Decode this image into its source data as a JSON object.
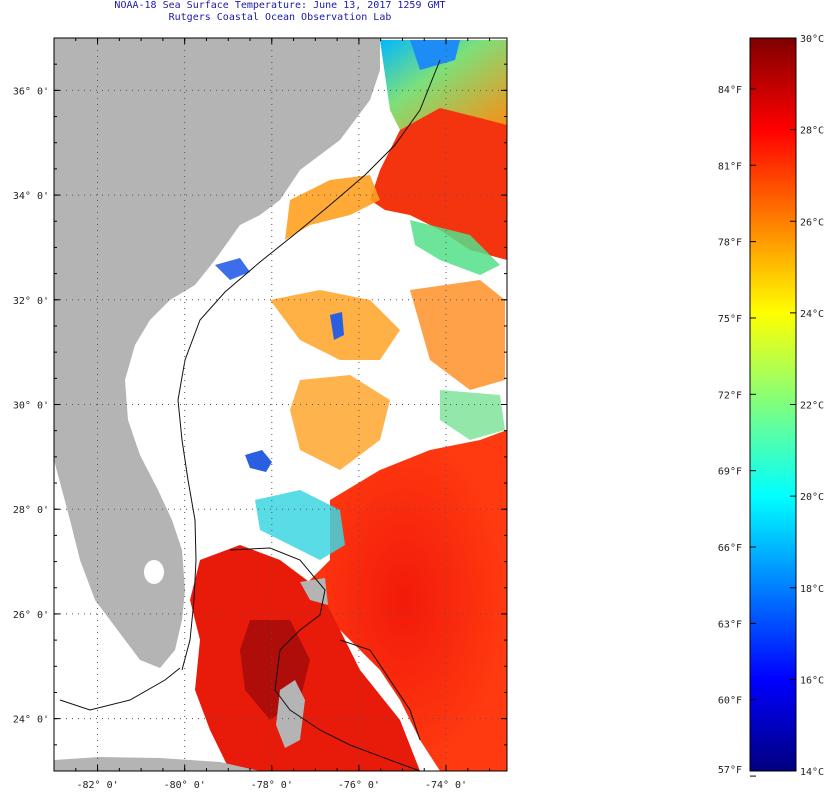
{
  "header": {
    "title": "NOAA-18 Sea Surface Temperature:  June 13, 2017 1259 GMT",
    "subtitle": "Rutgers Coastal Ocean Observation Lab"
  },
  "map": {
    "lat_range": [
      23.0,
      37.0
    ],
    "lon_range": [
      -83.0,
      -72.6
    ],
    "lat_ticks": [
      {
        "value": 36,
        "label": "36° 0'"
      },
      {
        "value": 34,
        "label": "34° 0'"
      },
      {
        "value": 32,
        "label": "32° 0'"
      },
      {
        "value": 30,
        "label": "30° 0'"
      },
      {
        "value": 28,
        "label": "28° 0'"
      },
      {
        "value": 26,
        "label": "26° 0'"
      },
      {
        "value": 24,
        "label": "24° 0'"
      }
    ],
    "lon_ticks": [
      {
        "value": -82,
        "label": "-82° 0'"
      },
      {
        "value": -80,
        "label": "-80° 0'"
      },
      {
        "value": -78,
        "label": "-78° 0'"
      },
      {
        "value": -76,
        "label": "-76° 0'"
      },
      {
        "value": -74,
        "label": "-74° 0'"
      }
    ],
    "grid": true,
    "colors": {
      "land": "#b4b4b4",
      "cloud": "#ffffff"
    }
  },
  "scale": {
    "min_c": 14,
    "max_c": 30,
    "celsius_labels": [
      {
        "value": 30,
        "label": "30°C"
      },
      {
        "value": 28,
        "label": "28°C"
      },
      {
        "value": 26,
        "label": "26°C"
      },
      {
        "value": 24,
        "label": "24°C"
      },
      {
        "value": 22,
        "label": "22°C"
      },
      {
        "value": 20,
        "label": "20°C"
      },
      {
        "value": 18,
        "label": "18°C"
      },
      {
        "value": 16,
        "label": "16°C"
      },
      {
        "value": 14,
        "label": "14°C"
      }
    ],
    "fahrenheit_labels": [
      {
        "value": 84,
        "label": "84°F"
      },
      {
        "value": 81,
        "label": "81°F"
      },
      {
        "value": 78,
        "label": "78°F"
      },
      {
        "value": 75,
        "label": "75°F"
      },
      {
        "value": 72,
        "label": "72°F"
      },
      {
        "value": 69,
        "label": "69°F"
      },
      {
        "value": 66,
        "label": "66°F"
      },
      {
        "value": 63,
        "label": "63°F"
      },
      {
        "value": 60,
        "label": "60°F"
      },
      {
        "value": 57,
        "label": "57°F"
      }
    ],
    "colors": [
      "#00007f",
      "#0000ff",
      "#007fff",
      "#00ffff",
      "#7fff7f",
      "#ffff00",
      "#ff7f00",
      "#ff0000",
      "#7f0000"
    ]
  }
}
